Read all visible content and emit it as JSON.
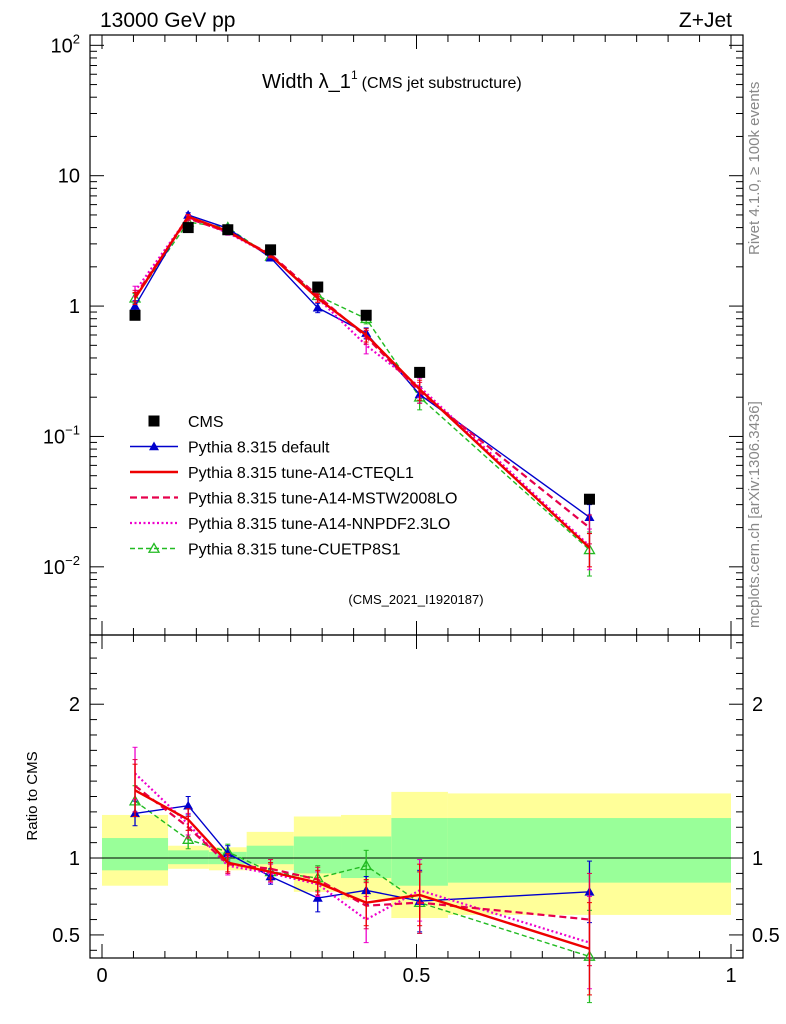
{
  "header": {
    "energy_label": "13000 GeV pp",
    "process_label": "Z+Jet"
  },
  "side_labels": {
    "rivet": "Rivet 4.1.0, ≥ 100k events",
    "mcplots": "mcplots.cern.ch [arXiv:1306.3436]"
  },
  "colors": {
    "data": "#000000",
    "default": "#0000cc",
    "cteql1": "#ee0000",
    "mstw": "#e6004c",
    "nnpdf": "#ee00cc",
    "cuetp8s1": "#22bb22",
    "band_inner": "#99ff99",
    "band_outer": "#ffff99"
  },
  "chart_data": [
    {
      "type": "line",
      "name": "main",
      "title": "Width λ_1",
      "title_sup": "1",
      "subtitle": "(CMS jet substructure)",
      "analysis_label": "(CMS_2021_I1920187)",
      "yscale": "log",
      "xlim": [
        0,
        1
      ],
      "ylim": [
        0.003,
        120
      ],
      "yticks": [
        {
          "value": 0.01,
          "base": "10",
          "exp": "−2"
        },
        {
          "value": 0.1,
          "base": "10",
          "exp": "−1"
        },
        {
          "value": 1,
          "base": "1",
          "exp": ""
        },
        {
          "value": 10,
          "base": "10",
          "exp": ""
        },
        {
          "value": 100,
          "base": "10",
          "exp": "2"
        }
      ],
      "data": {
        "name": "CMS",
        "x": [
          0.0525,
          0.137,
          0.2,
          0.268,
          0.343,
          0.42,
          0.505,
          0.775
        ],
        "y": [
          0.85,
          4.0,
          3.85,
          2.7,
          1.4,
          0.85,
          0.31,
          0.033
        ]
      },
      "series": [
        {
          "key": "default",
          "name": "Pythia 8.315 default",
          "x": [
            0.0525,
            0.137,
            0.2,
            0.268,
            0.343,
            0.42,
            0.505,
            0.775
          ],
          "y": [
            1.0,
            5.0,
            3.95,
            2.35,
            0.97,
            0.62,
            0.21,
            0.024
          ],
          "err": [
            0.1,
            0.2,
            0.15,
            0.1,
            0.08,
            0.06,
            0.03,
            0.006
          ]
        },
        {
          "key": "cteql1",
          "name": "Pythia 8.315 tune-A14-CTEQL1",
          "x": [
            0.0525,
            0.137,
            0.2,
            0.268,
            0.343,
            0.42,
            0.505,
            0.775
          ],
          "y": [
            1.15,
            4.85,
            3.75,
            2.45,
            1.15,
            0.6,
            0.23,
            0.014
          ],
          "err": [
            0.12,
            0.2,
            0.15,
            0.1,
            0.08,
            0.07,
            0.04,
            0.004
          ]
        },
        {
          "key": "mstw",
          "name": "Pythia 8.315 tune-A14-MSTW2008LO",
          "x": [
            0.0525,
            0.137,
            0.2,
            0.268,
            0.343,
            0.42,
            0.505,
            0.775
          ],
          "y": [
            1.2,
            4.7,
            3.7,
            2.5,
            1.2,
            0.58,
            0.22,
            0.02
          ],
          "err": [
            0.12,
            0.2,
            0.15,
            0.1,
            0.08,
            0.07,
            0.04,
            0.005
          ]
        },
        {
          "key": "nnpdf",
          "name": "Pythia 8.315 tune-A14-NNPDF2.3LO",
          "x": [
            0.0525,
            0.137,
            0.2,
            0.268,
            0.343,
            0.42,
            0.505,
            0.775
          ],
          "y": [
            1.3,
            4.8,
            3.65,
            2.45,
            1.15,
            0.5,
            0.24,
            0.0145
          ],
          "err": [
            0.12,
            0.2,
            0.15,
            0.1,
            0.08,
            0.07,
            0.04,
            0.005
          ]
        },
        {
          "key": "cuetp8s1",
          "name": "Pythia 8.315 tune-CUETP8S1",
          "x": [
            0.0525,
            0.137,
            0.2,
            0.268,
            0.343,
            0.42,
            0.505,
            0.775
          ],
          "y": [
            1.15,
            4.4,
            4.0,
            2.4,
            1.2,
            0.8,
            0.2,
            0.0135
          ],
          "err": [
            0.1,
            0.2,
            0.15,
            0.1,
            0.08,
            0.07,
            0.04,
            0.005
          ]
        }
      ]
    },
    {
      "type": "line",
      "name": "ratio",
      "ylabel": "Ratio to CMS",
      "xlim": [
        0,
        1
      ],
      "ylim": [
        0.35,
        2.45
      ],
      "xticks": [
        {
          "value": 0,
          "label": "0"
        },
        {
          "value": 0.5,
          "label": "0.5"
        },
        {
          "value": 1,
          "label": "1"
        }
      ],
      "yticks": [
        {
          "value": 0.5,
          "label": "0.5"
        },
        {
          "value": 1,
          "label": "1"
        },
        {
          "value": 2,
          "label": "2"
        }
      ],
      "bands": [
        {
          "x0": 0.0,
          "x1": 0.105,
          "inner": [
            0.92,
            1.13
          ],
          "outer": [
            0.82,
            1.28
          ]
        },
        {
          "x0": 0.105,
          "x1": 0.17,
          "inner": [
            0.96,
            1.05
          ],
          "outer": [
            0.93,
            1.08
          ]
        },
        {
          "x0": 0.17,
          "x1": 0.23,
          "inner": [
            0.96,
            1.04
          ],
          "outer": [
            0.92,
            1.07
          ]
        },
        {
          "x0": 0.23,
          "x1": 0.305,
          "inner": [
            0.96,
            1.08
          ],
          "outer": [
            0.92,
            1.17
          ]
        },
        {
          "x0": 0.305,
          "x1": 0.38,
          "inner": [
            0.9,
            1.14
          ],
          "outer": [
            0.78,
            1.27
          ]
        },
        {
          "x0": 0.38,
          "x1": 0.46,
          "inner": [
            0.87,
            1.14
          ],
          "outer": [
            0.73,
            1.28
          ]
        },
        {
          "x0": 0.46,
          "x1": 0.55,
          "inner": [
            0.82,
            1.26
          ],
          "outer": [
            0.61,
            1.43
          ]
        },
        {
          "x0": 0.55,
          "x1": 1.0,
          "inner": [
            0.84,
            1.26
          ],
          "outer": [
            0.63,
            1.42
          ]
        }
      ],
      "series": [
        {
          "key": "default",
          "x": [
            0.0525,
            0.137,
            0.2,
            0.268,
            0.343,
            0.42,
            0.505,
            0.775
          ],
          "y": [
            1.29,
            1.34,
            1.03,
            0.88,
            0.74,
            0.79,
            0.72,
            0.78
          ],
          "err": [
            0.08,
            0.06,
            0.05,
            0.05,
            0.09,
            0.09,
            0.2,
            0.2
          ]
        },
        {
          "key": "cteql1",
          "x": [
            0.0525,
            0.137,
            0.2,
            0.268,
            0.343,
            0.42,
            0.505,
            0.775
          ],
          "y": [
            1.44,
            1.25,
            0.97,
            0.91,
            0.84,
            0.71,
            0.76,
            0.41
          ],
          "err": [
            0.17,
            0.07,
            0.06,
            0.06,
            0.08,
            0.15,
            0.2,
            0.3
          ]
        },
        {
          "key": "mstw",
          "x": [
            0.0525,
            0.137,
            0.2,
            0.268,
            0.343,
            0.42,
            0.505,
            0.775
          ],
          "y": [
            1.47,
            1.2,
            0.96,
            0.93,
            0.86,
            0.69,
            0.71,
            0.6
          ],
          "err": [
            0.17,
            0.07,
            0.06,
            0.06,
            0.08,
            0.15,
            0.2,
            0.3
          ]
        },
        {
          "key": "nnpdf",
          "x": [
            0.0525,
            0.137,
            0.2,
            0.268,
            0.343,
            0.42,
            0.505,
            0.775
          ],
          "y": [
            1.55,
            1.22,
            0.95,
            0.9,
            0.83,
            0.6,
            0.79,
            0.45
          ],
          "err": [
            0.17,
            0.07,
            0.06,
            0.06,
            0.08,
            0.15,
            0.2,
            0.3
          ]
        },
        {
          "key": "cuetp8s1",
          "x": [
            0.0525,
            0.137,
            0.2,
            0.268,
            0.343,
            0.42,
            0.505,
            0.775
          ],
          "y": [
            1.37,
            1.12,
            1.04,
            0.91,
            0.87,
            0.95,
            0.71,
            0.36
          ],
          "err": [
            0.1,
            0.06,
            0.05,
            0.06,
            0.08,
            0.1,
            0.2,
            0.3
          ]
        }
      ]
    }
  ]
}
